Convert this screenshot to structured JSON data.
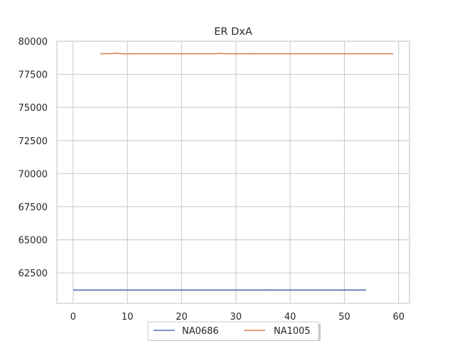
{
  "chart_data": {
    "type": "line",
    "title": "ER DxA",
    "xlabel": "",
    "ylabel": "",
    "xlim": [
      -3,
      62
    ],
    "ylim": [
      60200,
      80000
    ],
    "xticks": [
      0,
      10,
      20,
      30,
      40,
      50,
      60
    ],
    "yticks": [
      62500,
      65000,
      67500,
      70000,
      72500,
      75000,
      77500,
      80000
    ],
    "grid": true,
    "legend": "bottom-center",
    "series": [
      {
        "name": "NA0686",
        "color": "#4c72b0",
        "x_start": 0,
        "values": [
          61200,
          61200,
          61200,
          61200,
          61200,
          61200,
          61200,
          61200,
          61200,
          61200,
          61200,
          61200,
          61200,
          61200,
          61200,
          61200,
          61200,
          61200,
          61200,
          61200,
          61200,
          61200,
          61200,
          61200,
          61200,
          61200,
          61200,
          61200,
          61200,
          61200,
          61200,
          61200,
          61200,
          61200,
          61200,
          61200,
          61210,
          61200,
          61200,
          61200,
          61200,
          61200,
          61200,
          61200,
          61200,
          61200,
          61200,
          61200,
          61200,
          61200,
          61210,
          61200,
          61200,
          61200,
          61200
        ]
      },
      {
        "name": "NA1005",
        "color": "#dd8452",
        "x_start": 5,
        "values": [
          79060,
          79060,
          79060,
          79100,
          79050,
          79040,
          79050,
          79050,
          79050,
          79050,
          79050,
          79050,
          79050,
          79050,
          79050,
          79050,
          79050,
          79050,
          79050,
          79050,
          79050,
          79050,
          79080,
          79050,
          79050,
          79050,
          79050,
          79050,
          79060,
          79050,
          79050,
          79050,
          79050,
          79050,
          79050,
          79050,
          79050,
          79050,
          79050,
          79050,
          79050,
          79050,
          79050,
          79050,
          79050,
          79050,
          79050,
          79050,
          79050,
          79050,
          79050,
          79050,
          79050,
          79050,
          79050
        ]
      }
    ]
  }
}
